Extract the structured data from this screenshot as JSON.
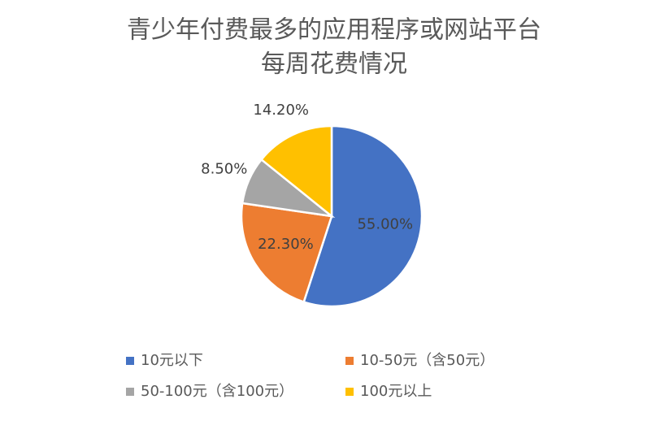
{
  "chart_data": {
    "type": "pie",
    "title": [
      "青少年付费最多的应用程序或网站平台",
      "每周花费情况"
    ],
    "categories": [
      "10元以下",
      "10-50元（含50元）",
      "50-100元（含100元）",
      "100元以上"
    ],
    "values": [
      55.0,
      22.3,
      8.5,
      14.2
    ],
    "value_labels": [
      "55.00%",
      "22.30%",
      "8.50%",
      "14.20%"
    ],
    "colors": [
      "#4472c4",
      "#ed7d31",
      "#a5a5a5",
      "#ffc000"
    ],
    "legend": "bottom"
  }
}
